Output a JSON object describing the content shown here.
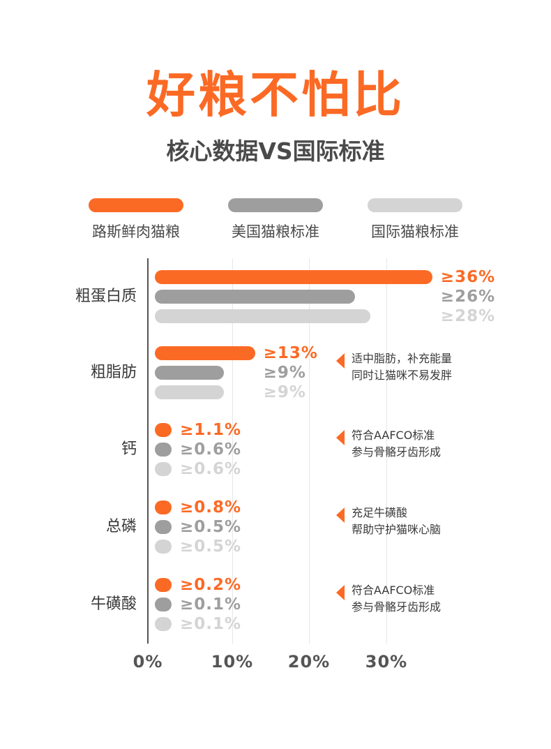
{
  "title": "好粮不怕比",
  "subtitle": "核心数据VS国际标准",
  "colors": {
    "orange": "#fb6a25",
    "dark_gray": "#9e9e9e",
    "light_gray": "#d4d4d4",
    "title": "#fb6a25"
  },
  "legend": [
    {
      "label": "路斯鲜肉猫粮"
    },
    {
      "label": "美国猫粮标准"
    },
    {
      "label": "国际猫粮标准"
    }
  ],
  "chart_data": {
    "type": "bar",
    "orientation": "horizontal",
    "title": "好粮不怕比",
    "subtitle": "核心数据VS国际标准",
    "categories": [
      "粗蛋白质",
      "粗脂肪",
      "钙",
      "总磷",
      "牛磺酸"
    ],
    "series": [
      {
        "name": "路斯鲜肉猫粮",
        "values": [
          36,
          13,
          1.1,
          0.8,
          0.2
        ],
        "labels": [
          "≥36%",
          "≥13%",
          "≥1.1%",
          "≥0.8%",
          "≥0.2%"
        ]
      },
      {
        "name": "美国猫粮标准",
        "values": [
          26,
          9,
          0.6,
          0.5,
          0.1
        ],
        "labels": [
          "≥26%",
          "≥9%",
          "≥0.6%",
          "≥0.5%",
          "≥0.1%"
        ]
      },
      {
        "name": "国际猫粮标准",
        "values": [
          28,
          9,
          0.6,
          0.5,
          0.1
        ],
        "labels": [
          "≥28%",
          "≥9%",
          "≥0.6%",
          "≥0.5%",
          "≥0.1%"
        ]
      }
    ],
    "x_ticks": [
      "0%",
      "10%",
      "20%",
      "30%"
    ],
    "xlim": [
      0,
      36
    ],
    "grid": true,
    "legend_position": "top",
    "annotations": [
      {
        "category": "粗脂肪",
        "lines": [
          "适中脂肪，补充能量",
          "同时让猫咪不易发胖"
        ]
      },
      {
        "category": "钙",
        "lines": [
          "符合AAFCO标准",
          "参与骨骼牙齿形成"
        ]
      },
      {
        "category": "总磷",
        "lines": [
          "充足牛磺酸",
          "帮助守护猫咪心脑"
        ]
      },
      {
        "category": "牛磺酸",
        "lines": [
          "符合AAFCO标准",
          "参与骨骼牙齿形成"
        ]
      }
    ]
  }
}
